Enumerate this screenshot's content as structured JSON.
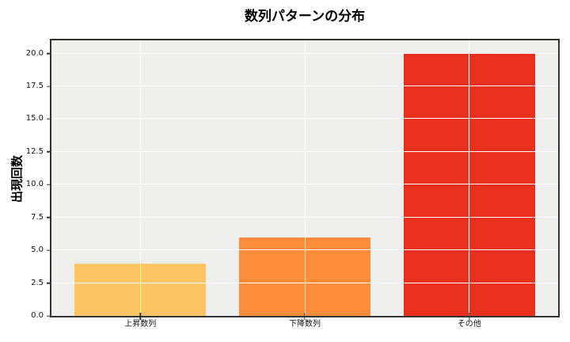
{
  "chart_data": {
    "type": "bar",
    "title": "数列パターンの分布",
    "xlabel": "",
    "ylabel": "出現回数",
    "categories": [
      "上昇数列",
      "下降数列",
      "その他"
    ],
    "values": [
      4,
      6,
      20
    ],
    "bar_colors": [
      "#FDC563",
      "#FD8D3C",
      "#E9301E"
    ],
    "bar_width": 0.8,
    "x_positions": [
      0,
      1,
      2
    ],
    "xlim": [
      -0.54,
      2.54
    ],
    "ylim": [
      0,
      21
    ],
    "yticks": [
      0,
      2.5,
      5,
      7.5,
      10,
      12.5,
      15,
      17.5,
      20
    ],
    "ytick_labels": [
      "0.0",
      "2.5",
      "5.0",
      "7.5",
      "10.0",
      "12.5",
      "15.0",
      "17.5",
      "20.0"
    ],
    "grid": "on",
    "grid_over_bars": true,
    "grid_color": "#FFFFFF",
    "plot_background": "#EFEFED",
    "figure_background": "#FFFFFF",
    "spine_color": "#333333",
    "legend": "none"
  }
}
